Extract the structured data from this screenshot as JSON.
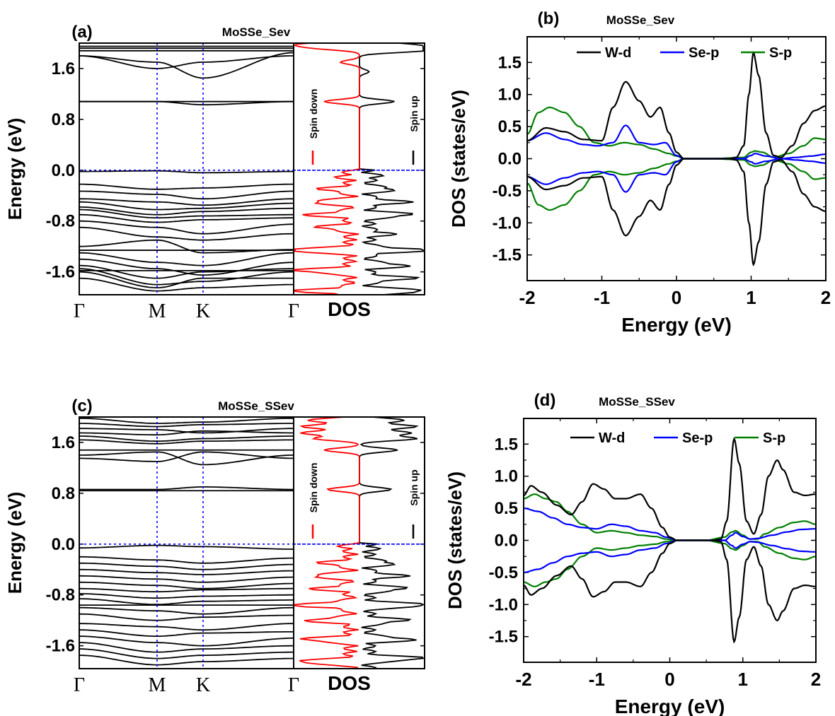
{
  "panels": {
    "a": {
      "label": "(a)",
      "title": "MoSSe_Sev",
      "ylabel": "Energy (eV)",
      "dos_label": "DOS",
      "spin_down_label": "Spin down",
      "spin_up_label": "Spin up",
      "kpoint_labels": [
        "Γ",
        "M",
        "K",
        "Γ"
      ],
      "yticks": [
        "1.6",
        "0.8",
        "0.0",
        "-0.8",
        "-1.6"
      ]
    },
    "b": {
      "label": "(b)",
      "title": "MoSSe_Sev",
      "xlabel": "Energy (eV)",
      "ylabel": "DOS (states/eV)",
      "legend": [
        "W-d",
        "Se-p",
        "S-p"
      ],
      "xticks": [
        "-2",
        "-1",
        "0",
        "1",
        "2"
      ],
      "yticks": [
        "1.5",
        "1.0",
        "0.5",
        "0.0",
        "-0.5",
        "-1.0",
        "-1.5"
      ]
    },
    "c": {
      "label": "(c)",
      "title": "MoSSe_SSev",
      "ylabel": "Energy (eV)",
      "dos_label": "DOS",
      "spin_down_label": "Spin down",
      "spin_up_label": "Spin up",
      "kpoint_labels": [
        "Γ",
        "M",
        "K",
        "Γ"
      ],
      "yticks": [
        "1.6",
        "0.8",
        "0.0",
        "-0.8",
        "-1.6"
      ]
    },
    "d": {
      "label": "(d)",
      "title": "MoSSe_SSev",
      "xlabel": "Energy (eV)",
      "ylabel": "DOS (states/eV)",
      "legend": [
        "W-d",
        "Se-p",
        "S-p"
      ],
      "xticks": [
        "-2",
        "-1",
        "0",
        "1",
        "2"
      ],
      "yticks": [
        "1.5",
        "1.0",
        "0.5",
        "0.0",
        "-0.5",
        "-1.0",
        "-1.5"
      ]
    }
  },
  "colors": {
    "bands": "#000000",
    "spin_down": "#ff0000",
    "spin_up": "#000000",
    "w_d": "#000000",
    "se_p": "#0000ff",
    "s_p": "#008000",
    "fermi": "#0000ff"
  },
  "chart_data": [
    {
      "panel": "a",
      "type": "line",
      "title": "MoSSe_Sev",
      "ylabel": "Energy (eV)",
      "ylim": [
        -1.96,
        2.0
      ],
      "x_kpoints": [
        "Γ",
        "M",
        "K",
        "Γ"
      ],
      "fermi_level": 0.0,
      "bands": [
        {
          "type": "flat",
          "y": 1.95
        },
        {
          "type": "flat",
          "y": 1.92
        },
        {
          "type": "flat",
          "y": 1.88
        },
        {
          "type": "curve",
          "y": [
            1.8,
            1.6,
            1.7,
            1.8
          ]
        },
        {
          "type": "curve",
          "y": [
            1.8,
            1.7,
            1.45,
            1.85
          ]
        },
        {
          "type": "flat",
          "y": 1.08
        },
        {
          "type": "curve",
          "y": [
            1.08,
            1.08,
            1.03,
            1.08
          ]
        },
        {
          "type": "curve",
          "y": [
            -0.02,
            -0.01,
            -0.04,
            -0.02
          ]
        },
        {
          "type": "curve",
          "y": [
            -0.22,
            -0.3,
            -0.28,
            -0.22
          ]
        },
        {
          "type": "curve",
          "y": [
            -0.33,
            -0.38,
            -0.45,
            -0.33
          ]
        },
        {
          "type": "curve",
          "y": [
            -0.45,
            -0.5,
            -0.55,
            -0.45
          ]
        },
        {
          "type": "curve",
          "y": [
            -0.5,
            -0.62,
            -0.6,
            -0.52
          ]
        },
        {
          "type": "curve",
          "y": [
            -0.58,
            -0.7,
            -0.65,
            -0.6
          ]
        },
        {
          "type": "curve",
          "y": [
            -0.62,
            -0.75,
            -0.72,
            -0.7
          ]
        },
        {
          "type": "curve",
          "y": [
            -0.7,
            -0.82,
            -0.78,
            -0.75
          ]
        },
        {
          "type": "curve",
          "y": [
            -0.8,
            -0.9,
            -1.0,
            -0.85
          ]
        },
        {
          "type": "curve",
          "y": [
            -0.9,
            -1.05,
            -1.1,
            -1.0
          ]
        },
        {
          "type": "curve",
          "y": [
            -1.2,
            -1.1,
            -1.3,
            -1.25
          ]
        },
        {
          "type": "curve",
          "y": [
            -1.3,
            -1.45,
            -1.5,
            -1.3
          ]
        },
        {
          "type": "curve",
          "y": [
            -1.4,
            -1.55,
            -1.65,
            -1.45
          ]
        },
        {
          "type": "curve",
          "y": [
            -1.5,
            -1.7,
            -1.6,
            -1.55
          ]
        },
        {
          "type": "curve",
          "y": [
            -1.55,
            -1.8,
            -1.75,
            -1.6
          ]
        },
        {
          "type": "curve",
          "y": [
            -1.6,
            -1.85,
            -1.7,
            -1.7
          ]
        },
        {
          "type": "curve",
          "y": [
            -1.7,
            -1.9,
            -1.85,
            -1.8
          ]
        },
        {
          "type": "flat",
          "y": -1.26
        },
        {
          "type": "flat",
          "y": -1.58
        }
      ],
      "dos_spin_up_peaks": [
        [
          1.98,
          0.7
        ],
        [
          1.92,
          0.9
        ],
        [
          1.88,
          0.8
        ],
        [
          1.55,
          0.15
        ],
        [
          1.08,
          0.55
        ],
        [
          -0.1,
          0.15
        ],
        [
          -0.3,
          0.4
        ],
        [
          -0.5,
          0.6
        ],
        [
          -0.7,
          0.7
        ],
        [
          -1.0,
          0.35
        ],
        [
          -1.26,
          1.0
        ],
        [
          -1.5,
          0.6
        ],
        [
          -1.7,
          0.7
        ],
        [
          -1.9,
          0.9
        ]
      ],
      "dos_spin_down_peaks": [
        [
          1.98,
          0.9
        ],
        [
          1.92,
          0.6
        ],
        [
          1.7,
          0.3
        ],
        [
          1.08,
          0.55
        ],
        [
          -0.1,
          0.15
        ],
        [
          -0.3,
          0.45
        ],
        [
          -0.5,
          0.6
        ],
        [
          -0.7,
          0.65
        ],
        [
          -0.9,
          0.5
        ],
        [
          -1.26,
          1.0
        ],
        [
          -1.58,
          0.9
        ],
        [
          -1.9,
          0.9
        ]
      ]
    },
    {
      "panel": "b",
      "type": "line",
      "title": "MoSSe_Sev",
      "xlabel": "Energy (eV)",
      "ylabel": "DOS (states/eV)",
      "xlim": [
        -2,
        2
      ],
      "ylim": [
        -1.9,
        1.9
      ],
      "series": [
        {
          "name": "W-d",
          "x": [
            -2.0,
            -1.75,
            -1.5,
            -1.25,
            -1.0,
            -0.85,
            -0.68,
            -0.5,
            -0.35,
            -0.22,
            -0.1,
            0.0,
            0.1,
            0.3,
            0.5,
            0.7,
            0.8,
            0.9,
            0.97,
            1.03,
            1.1,
            1.2,
            1.3,
            1.4,
            1.55,
            1.7,
            1.85,
            2.0
          ],
          "y": [
            0.28,
            0.48,
            0.42,
            0.3,
            0.28,
            0.8,
            1.2,
            0.9,
            0.65,
            0.8,
            0.4,
            0.1,
            0.0,
            0.0,
            0.0,
            0.0,
            0.02,
            0.2,
            1.0,
            1.65,
            1.3,
            0.4,
            0.05,
            0.02,
            0.2,
            0.55,
            0.75,
            0.82
          ]
        },
        {
          "name": "Se-p",
          "x": [
            -2.0,
            -1.75,
            -1.5,
            -1.25,
            -1.05,
            -0.85,
            -0.68,
            -0.5,
            -0.3,
            -0.15,
            0.0,
            0.1,
            0.5,
            0.9,
            1.0,
            1.05,
            1.2,
            1.4,
            1.6,
            1.8,
            2.0
          ],
          "y": [
            0.28,
            0.4,
            0.3,
            0.22,
            0.2,
            0.25,
            0.52,
            0.25,
            0.22,
            0.25,
            0.05,
            0.0,
            0.0,
            0.0,
            0.05,
            0.08,
            0.04,
            0.0,
            0.02,
            0.04,
            0.07
          ]
        },
        {
          "name": "S-p",
          "x": [
            -2.0,
            -1.85,
            -1.7,
            -1.5,
            -1.3,
            -1.1,
            -0.9,
            -0.7,
            -0.5,
            -0.3,
            -0.1,
            0.0,
            0.1,
            0.5,
            0.9,
            1.0,
            1.05,
            1.15,
            1.3,
            1.5,
            1.7,
            1.85,
            2.0
          ],
          "y": [
            0.38,
            0.72,
            0.8,
            0.72,
            0.5,
            0.25,
            0.2,
            0.25,
            0.22,
            0.15,
            0.08,
            0.04,
            0.0,
            0.0,
            0.02,
            0.1,
            0.12,
            0.1,
            0.02,
            0.08,
            0.2,
            0.32,
            0.3
          ]
        }
      ],
      "spin_symmetric": true
    },
    {
      "panel": "c",
      "type": "line",
      "title": "MoSSe_SSev",
      "ylabel": "Energy (eV)",
      "ylim": [
        -1.96,
        2.0
      ],
      "x_kpoints": [
        "Γ",
        "M",
        "K",
        "Γ"
      ],
      "fermi_level": 0.0,
      "bands": [
        {
          "type": "curve",
          "y": [
            1.98,
            1.9,
            1.92,
            1.98
          ]
        },
        {
          "type": "curve",
          "y": [
            1.9,
            1.85,
            1.88,
            1.9
          ]
        },
        {
          "type": "curve",
          "y": [
            1.82,
            1.8,
            1.75,
            1.82
          ]
        },
        {
          "type": "curve",
          "y": [
            1.75,
            1.72,
            1.78,
            1.75
          ]
        },
        {
          "type": "curve",
          "y": [
            1.7,
            1.62,
            1.66,
            1.7
          ]
        },
        {
          "type": "curve",
          "y": [
            1.64,
            1.58,
            1.62,
            1.64
          ]
        },
        {
          "type": "curve",
          "y": [
            1.4,
            1.45,
            1.25,
            1.4
          ]
        },
        {
          "type": "curve",
          "y": [
            1.35,
            1.3,
            1.45,
            1.35
          ]
        },
        {
          "type": "flat",
          "y": 1.48
        },
        {
          "type": "curve",
          "y": [
            0.86,
            0.86,
            0.9,
            0.86
          ]
        },
        {
          "type": "flat",
          "y": 0.84
        },
        {
          "type": "curve",
          "y": [
            -0.06,
            -0.02,
            -0.04,
            -0.08
          ]
        },
        {
          "type": "curve",
          "y": [
            -0.2,
            -0.25,
            -0.3,
            -0.22
          ]
        },
        {
          "type": "curve",
          "y": [
            -0.3,
            -0.35,
            -0.4,
            -0.32
          ]
        },
        {
          "type": "curve",
          "y": [
            -0.4,
            -0.45,
            -0.48,
            -0.42
          ]
        },
        {
          "type": "curve",
          "y": [
            -0.5,
            -0.55,
            -0.6,
            -0.52
          ]
        },
        {
          "type": "curve",
          "y": [
            -0.6,
            -0.65,
            -0.7,
            -0.62
          ]
        },
        {
          "type": "curve",
          "y": [
            -0.7,
            -0.75,
            -0.72,
            -0.7
          ]
        },
        {
          "type": "curve",
          "y": [
            -0.78,
            -0.85,
            -0.82,
            -0.8
          ]
        },
        {
          "type": "curve",
          "y": [
            -0.86,
            -0.95,
            -0.9,
            -0.88
          ]
        },
        {
          "type": "curve",
          "y": [
            -1.0,
            -1.05,
            -1.1,
            -1.0
          ]
        },
        {
          "type": "curve",
          "y": [
            -1.1,
            -1.2,
            -1.15,
            -1.12
          ]
        },
        {
          "type": "curve",
          "y": [
            -1.25,
            -1.3,
            -1.35,
            -1.25
          ]
        },
        {
          "type": "curve",
          "y": [
            -1.35,
            -1.45,
            -1.4,
            -1.38
          ]
        },
        {
          "type": "curve",
          "y": [
            -1.45,
            -1.55,
            -1.6,
            -1.48
          ]
        },
        {
          "type": "curve",
          "y": [
            -1.55,
            -1.7,
            -1.65,
            -1.6
          ]
        },
        {
          "type": "curve",
          "y": [
            -1.65,
            -1.8,
            -1.75,
            -1.7
          ]
        },
        {
          "type": "curve",
          "y": [
            -1.75,
            -1.9,
            -1.85,
            -1.8
          ]
        },
        {
          "type": "flat",
          "y": -0.96
        }
      ],
      "dos_spin_up_peaks": [
        [
          1.95,
          0.7
        ],
        [
          1.85,
          0.9
        ],
        [
          1.75,
          0.8
        ],
        [
          1.66,
          0.9
        ],
        [
          1.48,
          0.6
        ],
        [
          0.86,
          0.5
        ],
        [
          -0.05,
          0.1
        ],
        [
          -0.3,
          0.4
        ],
        [
          -0.5,
          0.55
        ],
        [
          -0.7,
          0.6
        ],
        [
          -0.96,
          1.0
        ],
        [
          -1.2,
          0.6
        ],
        [
          -1.5,
          0.7
        ],
        [
          -1.8,
          0.9
        ]
      ],
      "dos_spin_down_peaks": [
        [
          1.95,
          0.8
        ],
        [
          1.85,
          0.9
        ],
        [
          1.75,
          0.9
        ],
        [
          1.66,
          0.7
        ],
        [
          1.48,
          0.55
        ],
        [
          0.86,
          0.5
        ],
        [
          -0.05,
          0.1
        ],
        [
          -0.3,
          0.45
        ],
        [
          -0.5,
          0.6
        ],
        [
          -0.7,
          0.55
        ],
        [
          -0.96,
          1.0
        ],
        [
          -1.2,
          0.65
        ],
        [
          -1.5,
          0.75
        ],
        [
          -1.85,
          0.85
        ]
      ]
    },
    {
      "panel": "d",
      "type": "line",
      "title": "MoSSe_SSev",
      "xlabel": "Energy (eV)",
      "ylabel": "DOS (states/eV)",
      "xlim": [
        -2,
        2
      ],
      "ylim": [
        -1.9,
        1.9
      ],
      "series": [
        {
          "name": "W-d",
          "x": [
            -2.0,
            -1.9,
            -1.75,
            -1.55,
            -1.35,
            -1.2,
            -1.05,
            -0.9,
            -0.75,
            -0.6,
            -0.4,
            -0.25,
            -0.1,
            0.0,
            0.1,
            0.4,
            0.6,
            0.7,
            0.78,
            0.88,
            0.95,
            1.05,
            1.15,
            1.25,
            1.35,
            1.47,
            1.55,
            1.7,
            1.85,
            2.0
          ],
          "y": [
            0.7,
            0.85,
            0.75,
            0.55,
            0.4,
            0.6,
            0.88,
            0.8,
            0.65,
            0.65,
            0.72,
            0.5,
            0.2,
            0.05,
            0.0,
            0.0,
            0.0,
            0.02,
            0.3,
            1.58,
            1.2,
            0.3,
            0.1,
            0.4,
            1.0,
            1.25,
            1.1,
            0.75,
            0.7,
            0.72
          ]
        },
        {
          "name": "Se-p",
          "x": [
            -2.0,
            -1.8,
            -1.6,
            -1.4,
            -1.2,
            -1.0,
            -0.8,
            -0.6,
            -0.4,
            -0.2,
            -0.05,
            0.1,
            0.5,
            0.75,
            0.85,
            0.9,
            1.0,
            1.1,
            1.2,
            1.4,
            1.6,
            1.8,
            2.0
          ],
          "y": [
            0.5,
            0.45,
            0.35,
            0.25,
            0.2,
            0.18,
            0.25,
            0.22,
            0.15,
            0.12,
            0.05,
            0.0,
            0.0,
            0.0,
            0.08,
            0.12,
            0.06,
            0.02,
            0.03,
            0.08,
            0.13,
            0.17,
            0.18
          ]
        },
        {
          "name": "S-p",
          "x": [
            -2.0,
            -1.85,
            -1.7,
            -1.55,
            -1.4,
            -1.2,
            -1.0,
            -0.8,
            -0.6,
            -0.4,
            -0.2,
            -0.05,
            0.1,
            0.5,
            0.75,
            0.85,
            0.9,
            1.0,
            1.1,
            1.2,
            1.3,
            1.5,
            1.7,
            1.85,
            2.0
          ],
          "y": [
            0.65,
            0.72,
            0.65,
            0.6,
            0.45,
            0.25,
            0.12,
            0.15,
            0.12,
            0.08,
            0.06,
            0.02,
            0.0,
            0.0,
            0.05,
            0.13,
            0.15,
            0.08,
            0.02,
            0.02,
            0.1,
            0.2,
            0.28,
            0.3,
            0.25
          ]
        }
      ],
      "spin_symmetric": true
    }
  ]
}
